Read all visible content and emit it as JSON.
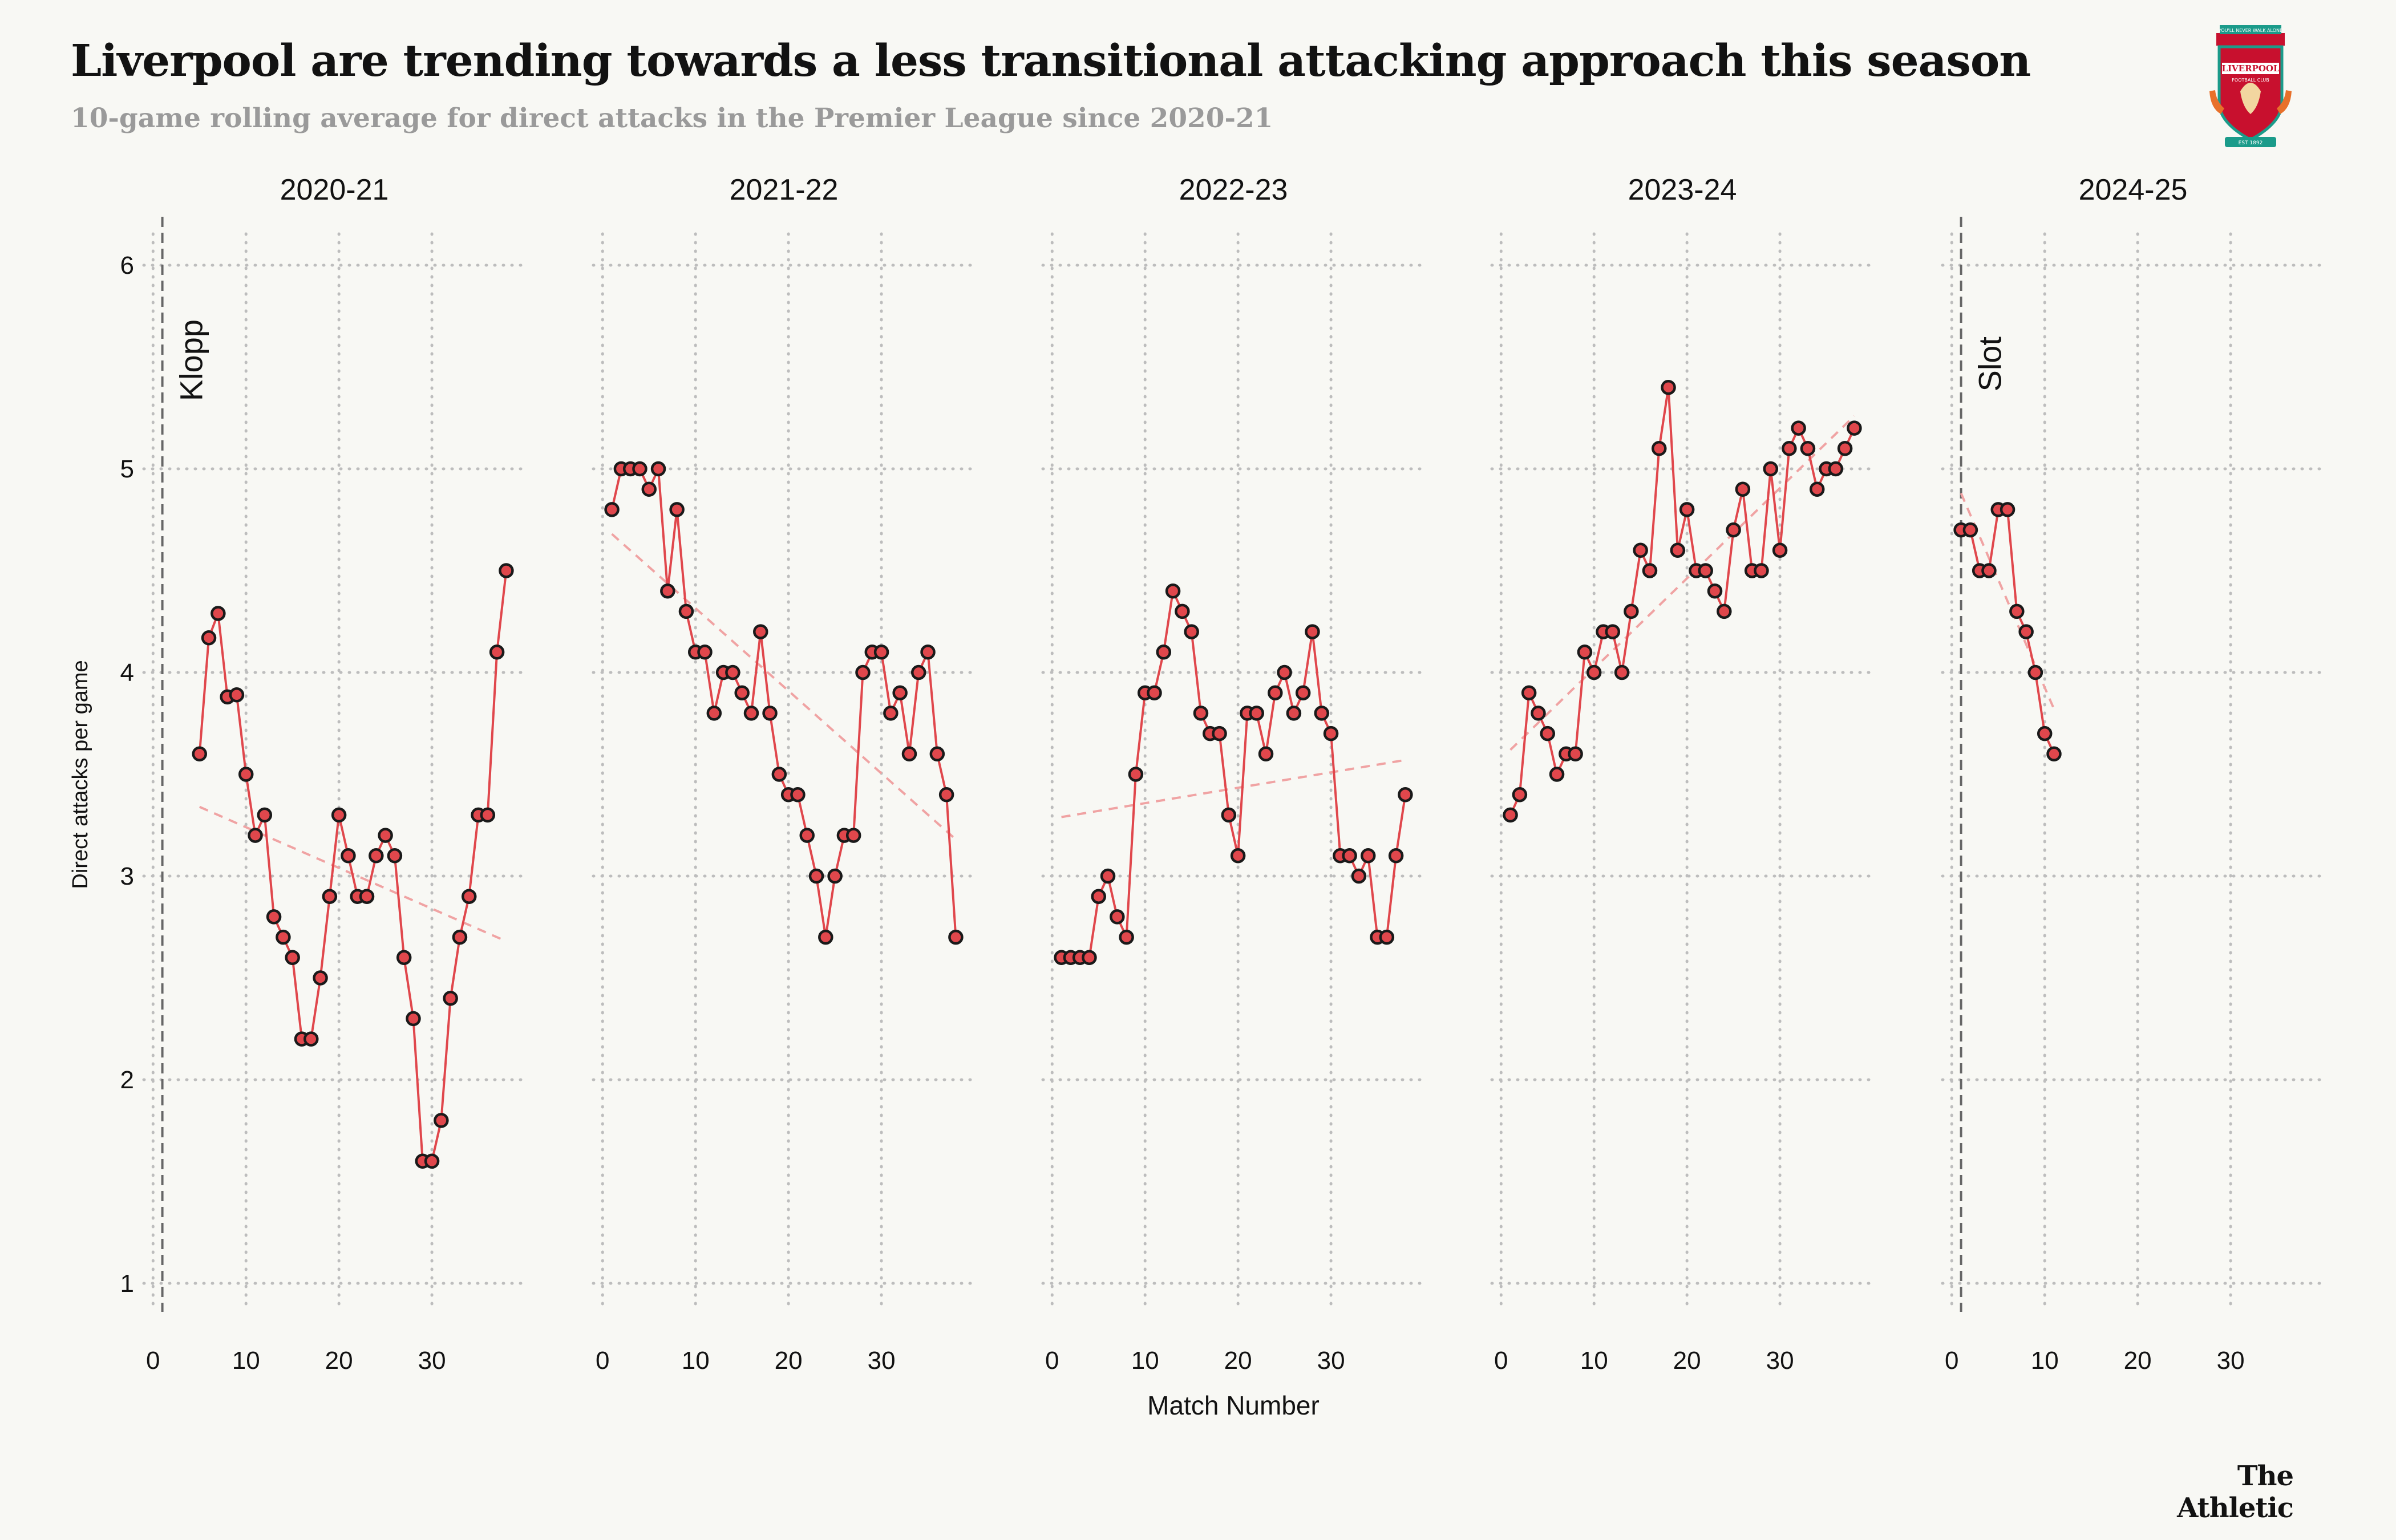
{
  "title": "Liverpool are trending towards a less transitional attacking approach this season",
  "subtitle": "10-game rolling average for direct attacks in the Premier League since 2020-21",
  "brand": "The Athletic",
  "crest": {
    "top": "YOU'LL NEVER WALK ALONE",
    "name": "LIVERPOOL",
    "sub": "FOOTBALL CLUB",
    "est": "EST 1892"
  },
  "colors": {
    "series": "#e0474c",
    "trend": "#f0a3a3",
    "background": "#f8f8f4",
    "crest_red": "#c8102e",
    "crest_teal": "#1b9b8a"
  },
  "chart_data": {
    "type": "line",
    "ylabel": "Direct attacks per game",
    "xlabel": "Match Number",
    "ylim": [
      0.75,
      6.3
    ],
    "yticks": [
      1,
      2,
      3,
      4,
      5,
      6
    ],
    "xlim": [
      -1,
      40
    ],
    "xticks": [
      0,
      10,
      20,
      30
    ],
    "grid": true,
    "managers": [
      {
        "name": "Klopp",
        "panel": 0,
        "x": 1
      },
      {
        "name": "Slot",
        "panel": 4,
        "x": 1
      }
    ],
    "panels": [
      {
        "season": "2020-21",
        "x": [
          5,
          6,
          7,
          8,
          9,
          10,
          11,
          12,
          13,
          14,
          15,
          16,
          17,
          18,
          19,
          20,
          21,
          22,
          23,
          24,
          25,
          26,
          27,
          28,
          29,
          30,
          31,
          32,
          33,
          34,
          35,
          36,
          37,
          38
        ],
        "y": [
          3.6,
          4.17,
          4.29,
          3.88,
          3.89,
          3.5,
          3.2,
          3.3,
          2.8,
          2.7,
          2.6,
          2.2,
          2.2,
          2.5,
          2.9,
          3.3,
          3.1,
          2.9,
          2.9,
          3.1,
          3.2,
          3.1,
          2.6,
          2.3,
          1.6,
          1.6,
          1.8,
          2.4,
          2.7,
          2.9,
          3.3,
          3.3,
          4.1,
          4.5
        ],
        "trend": [
          [
            5,
            3.34
          ],
          [
            38,
            2.68
          ]
        ]
      },
      {
        "season": "2021-22",
        "x": [
          1,
          2,
          3,
          4,
          5,
          6,
          7,
          8,
          9,
          10,
          11,
          12,
          13,
          14,
          15,
          16,
          17,
          18,
          19,
          20,
          21,
          22,
          23,
          24,
          25,
          26,
          27,
          28,
          29,
          30,
          31,
          32,
          33,
          34,
          35,
          36,
          37,
          38
        ],
        "y": [
          4.8,
          5.0,
          5.0,
          5.0,
          4.9,
          5.0,
          4.4,
          4.8,
          4.3,
          4.1,
          4.1,
          3.8,
          4.0,
          4.0,
          3.9,
          3.8,
          4.2,
          3.8,
          3.5,
          3.4,
          3.4,
          3.2,
          3.0,
          2.7,
          3.0,
          3.2,
          3.2,
          4.0,
          4.1,
          4.1,
          3.8,
          3.9,
          3.6,
          4.0,
          4.1,
          3.6,
          3.4,
          2.7
        ],
        "trend": [
          [
            1,
            4.68
          ],
          [
            38,
            3.18
          ]
        ]
      },
      {
        "season": "2022-23",
        "x": [
          1,
          2,
          3,
          4,
          5,
          6,
          7,
          8,
          9,
          10,
          11,
          12,
          13,
          14,
          15,
          16,
          17,
          18,
          19,
          20,
          21,
          22,
          23,
          24,
          25,
          26,
          27,
          28,
          29,
          30,
          31,
          32,
          33,
          34,
          35,
          36,
          37,
          38
        ],
        "y": [
          2.6,
          2.6,
          2.6,
          2.6,
          2.9,
          3.0,
          2.8,
          2.7,
          3.5,
          3.9,
          3.9,
          4.1,
          4.4,
          4.3,
          4.2,
          3.8,
          3.7,
          3.7,
          3.3,
          3.1,
          3.8,
          3.8,
          3.6,
          3.9,
          4.0,
          3.8,
          3.9,
          4.2,
          3.8,
          3.7,
          3.1,
          3.1,
          3.0,
          3.1,
          2.7,
          2.7,
          3.1,
          3.4
        ],
        "trend": [
          [
            1,
            3.29
          ],
          [
            38,
            3.57
          ]
        ]
      },
      {
        "season": "2023-24",
        "x": [
          1,
          2,
          3,
          4,
          5,
          6,
          7,
          8,
          9,
          10,
          11,
          12,
          13,
          14,
          15,
          16,
          17,
          18,
          19,
          20,
          21,
          22,
          23,
          24,
          25,
          26,
          27,
          28,
          29,
          30,
          31,
          32,
          33,
          34,
          35,
          36,
          37,
          38
        ],
        "y": [
          3.3,
          3.4,
          3.9,
          3.8,
          3.7,
          3.5,
          3.6,
          3.6,
          4.1,
          4.0,
          4.2,
          4.2,
          4.0,
          4.3,
          4.6,
          4.5,
          5.1,
          5.4,
          4.6,
          4.8,
          4.5,
          4.5,
          4.4,
          4.3,
          4.7,
          4.9,
          4.5,
          4.5,
          5.0,
          4.6,
          5.1,
          5.2,
          5.1,
          4.9,
          5.0,
          5.0,
          5.1,
          5.2
        ],
        "trend": [
          [
            1,
            3.62
          ],
          [
            38,
            5.26
          ]
        ]
      },
      {
        "season": "2024-25",
        "x": [
          1,
          2,
          3,
          4,
          5,
          6,
          7,
          8,
          9,
          10,
          11
        ],
        "y": [
          4.7,
          4.7,
          4.5,
          4.5,
          4.8,
          4.8,
          4.3,
          4.2,
          4.0,
          3.7,
          3.6
        ],
        "trend": [
          [
            1,
            4.88
          ],
          [
            11,
            3.82
          ]
        ]
      }
    ]
  }
}
